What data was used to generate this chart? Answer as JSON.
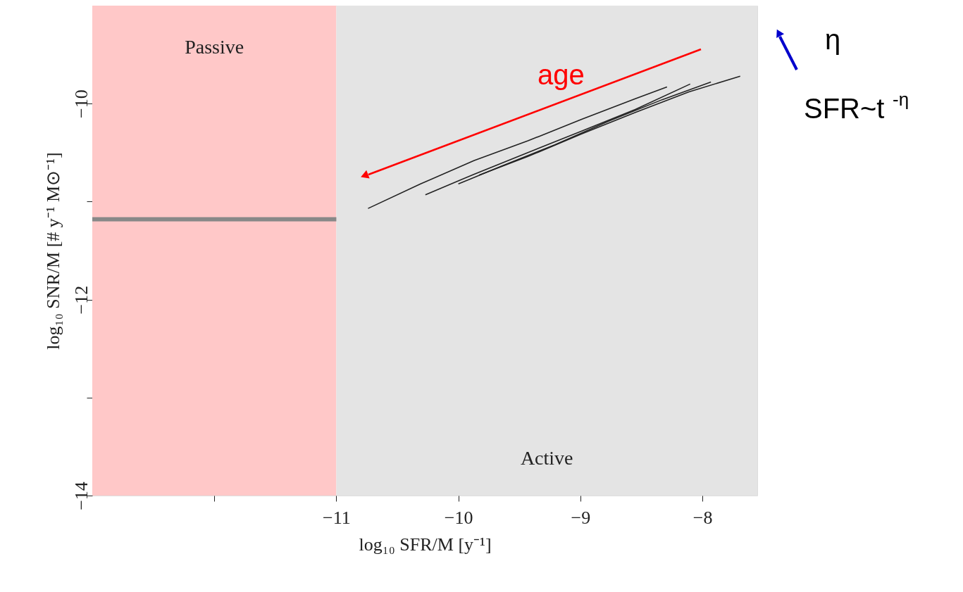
{
  "chart_data": {
    "type": "line",
    "xlabel": "log₁₀ SFR/M [y⁻¹]",
    "ylabel": "log₁₀ SNR/M [# y⁻¹ M⊙⁻¹]",
    "xlim": [
      -13,
      -7.55
    ],
    "ylim": [
      -14,
      -9
    ],
    "xticks": [
      {
        "value": -12,
        "label": null
      },
      -11,
      -10,
      -9,
      -8
    ],
    "yticks": [
      -14,
      {
        "value": -13,
        "label": null
      },
      -12,
      {
        "value": -11,
        "label": null
      },
      -10
    ],
    "grid": false,
    "marker": "none",
    "line_style": "solid",
    "bands": [
      {
        "axis": "x",
        "from": -13,
        "to": -11,
        "label": "Passive",
        "color": "#ffc8c8"
      },
      {
        "axis": "x",
        "from": -11,
        "to": -7.55,
        "label": "Active",
        "color": "#e4e4e4"
      }
    ],
    "series": [
      {
        "color": "#888888",
        "x": [
          -13,
          -11
        ],
        "values": [
          -11.18,
          -11.18
        ]
      },
      {
        "color": "#222222",
        "x": [
          -10.74,
          -10.31,
          -9.87,
          -9.43,
          -8.99,
          -8.55,
          -8.29
        ],
        "values": [
          -11.07,
          -10.82,
          -10.58,
          -10.38,
          -10.16,
          -9.95,
          -9.83
        ]
      },
      {
        "color": "#222222",
        "x": [
          -10.27,
          -9.87,
          -9.43,
          -8.99,
          -8.55,
          -8.1
        ],
        "values": [
          -10.93,
          -10.72,
          -10.5,
          -10.28,
          -10.06,
          -9.8
        ]
      },
      {
        "color": "#222222",
        "x": [
          -10.0,
          -9.65,
          -9.21,
          -8.77,
          -8.33,
          -7.93
        ],
        "values": [
          -10.82,
          -10.64,
          -10.42,
          -10.18,
          -9.96,
          -9.78
        ]
      },
      {
        "color": "#222222",
        "x": [
          -9.83,
          -9.43,
          -8.99,
          -8.55,
          -8.11,
          -7.69
        ],
        "values": [
          -10.73,
          -10.54,
          -10.31,
          -10.09,
          -9.88,
          -9.72
        ]
      }
    ],
    "annotations": [
      "age",
      "η",
      "SFR~t$^{-η}$"
    ]
  }
}
